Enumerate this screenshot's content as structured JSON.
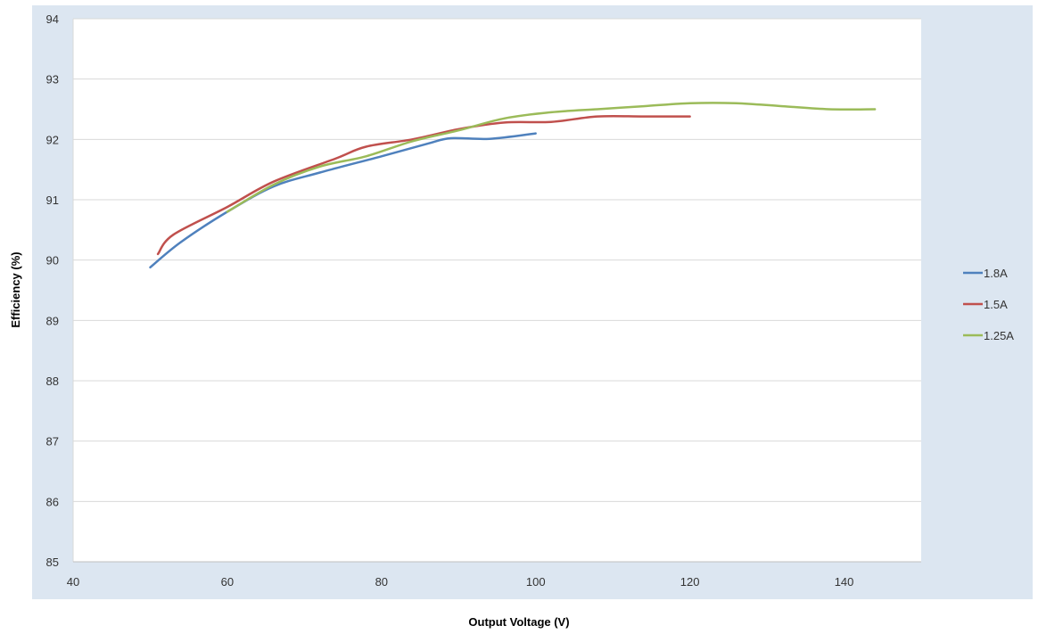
{
  "chart_data": {
    "type": "line",
    "title": "",
    "xlabel": "Output Voltage (V)",
    "ylabel": "Efficiency (%)",
    "xlim": [
      40,
      150
    ],
    "ylim": [
      85,
      94
    ],
    "xticks": [
      40,
      60,
      80,
      100,
      120,
      140
    ],
    "yticks": [
      85,
      86,
      87,
      88,
      89,
      90,
      91,
      92,
      93,
      94
    ],
    "grid": "horizontal",
    "legend_position": "right",
    "colors": {
      "background": "#dce6f1",
      "plot_area": "#ffffff",
      "gridline": "#d9d9d9"
    },
    "series": [
      {
        "name": "1.8A",
        "color": "#4f81bd",
        "points": [
          [
            50,
            89.88
          ],
          [
            54,
            90.3
          ],
          [
            60,
            90.8
          ],
          [
            66,
            91.22
          ],
          [
            72,
            91.45
          ],
          [
            80,
            91.72
          ],
          [
            86,
            91.93
          ],
          [
            89,
            92.02
          ],
          [
            94,
            92.01
          ],
          [
            100,
            92.1
          ]
        ]
      },
      {
        "name": "1.5A",
        "color": "#c0504d",
        "points": [
          [
            51,
            90.1
          ],
          [
            53,
            90.42
          ],
          [
            60,
            90.88
          ],
          [
            66,
            91.3
          ],
          [
            74,
            91.68
          ],
          [
            78,
            91.88
          ],
          [
            84,
            92.0
          ],
          [
            90,
            92.17
          ],
          [
            96,
            92.28
          ],
          [
            102,
            92.29
          ],
          [
            108,
            92.38
          ],
          [
            114,
            92.38
          ],
          [
            120,
            92.38
          ]
        ]
      },
      {
        "name": "1.25A",
        "color": "#9bbb59",
        "points": [
          [
            60,
            90.8
          ],
          [
            66,
            91.25
          ],
          [
            72,
            91.55
          ],
          [
            78,
            91.72
          ],
          [
            84,
            91.97
          ],
          [
            90,
            92.15
          ],
          [
            96,
            92.35
          ],
          [
            102,
            92.45
          ],
          [
            108,
            92.5
          ],
          [
            114,
            92.55
          ],
          [
            120,
            92.6
          ],
          [
            126,
            92.6
          ],
          [
            132,
            92.55
          ],
          [
            138,
            92.5
          ],
          [
            144,
            92.5
          ]
        ]
      }
    ]
  }
}
